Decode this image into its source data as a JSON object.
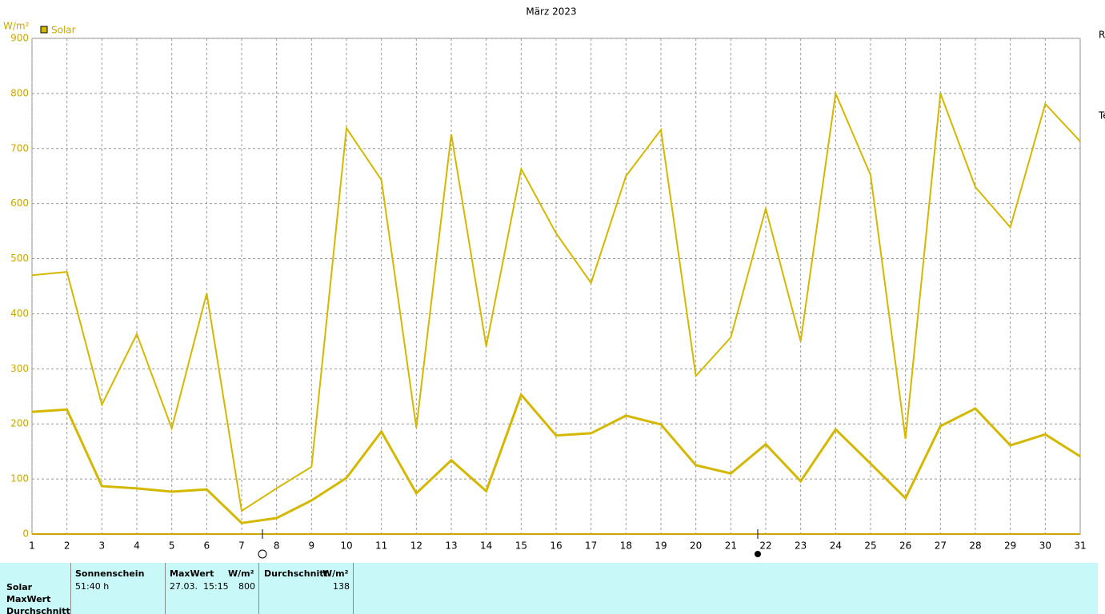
{
  "chart_data": {
    "type": "line",
    "title": "März 2023",
    "y_label": "W/m²",
    "legend_position": "top-left",
    "grid": true,
    "x": [
      1,
      2,
      3,
      4,
      5,
      6,
      7,
      8,
      9,
      10,
      11,
      12,
      13,
      14,
      15,
      16,
      17,
      18,
      19,
      20,
      21,
      22,
      23,
      24,
      25,
      26,
      27,
      28,
      29,
      30,
      31
    ],
    "xlim": [
      1,
      31
    ],
    "xticks": [
      1,
      2,
      3,
      4,
      5,
      6,
      7,
      8,
      9,
      10,
      11,
      12,
      13,
      14,
      15,
      16,
      17,
      18,
      19,
      20,
      21,
      22,
      23,
      24,
      25,
      26,
      27,
      28,
      29,
      30,
      31
    ],
    "ylim": [
      0,
      900
    ],
    "yticks": [
      0,
      100,
      200,
      300,
      400,
      500,
      600,
      700,
      800,
      900
    ],
    "series": [
      {
        "name": "Solar",
        "color": "#d4b800",
        "values": [
          470,
          476,
          235,
          363,
          192,
          437,
          42,
          83,
          122,
          737,
          643,
          193,
          726,
          341,
          663,
          546,
          456,
          650,
          734,
          287,
          357,
          591,
          350,
          800,
          652,
          173,
          800,
          630,
          557,
          781,
          713
        ]
      },
      {
        "color": "#d4b800",
        "values": [
          222,
          226,
          87,
          83,
          77,
          81,
          20,
          29,
          61,
          102,
          186,
          74,
          134,
          78,
          253,
          179,
          183,
          215,
          199,
          125,
          110,
          163,
          96,
          190,
          128,
          65,
          196,
          228,
          161,
          181,
          141
        ]
      }
    ],
    "side_labels": [
      "R",
      "Te"
    ]
  },
  "table": {
    "row_labels": [
      "Solar",
      "MaxWert",
      "Durchschnitt"
    ],
    "columns": [
      {
        "header": "Sonnenschein",
        "cells": [
          "51:40 h"
        ]
      },
      {
        "header": "MaxWert",
        "unit": "W/m²",
        "cells": [
          "27.03.  15:15",
          "800"
        ]
      },
      {
        "header": "Durchschnitt",
        "unit": "W/m²",
        "cells": [
          "138"
        ]
      }
    ]
  }
}
